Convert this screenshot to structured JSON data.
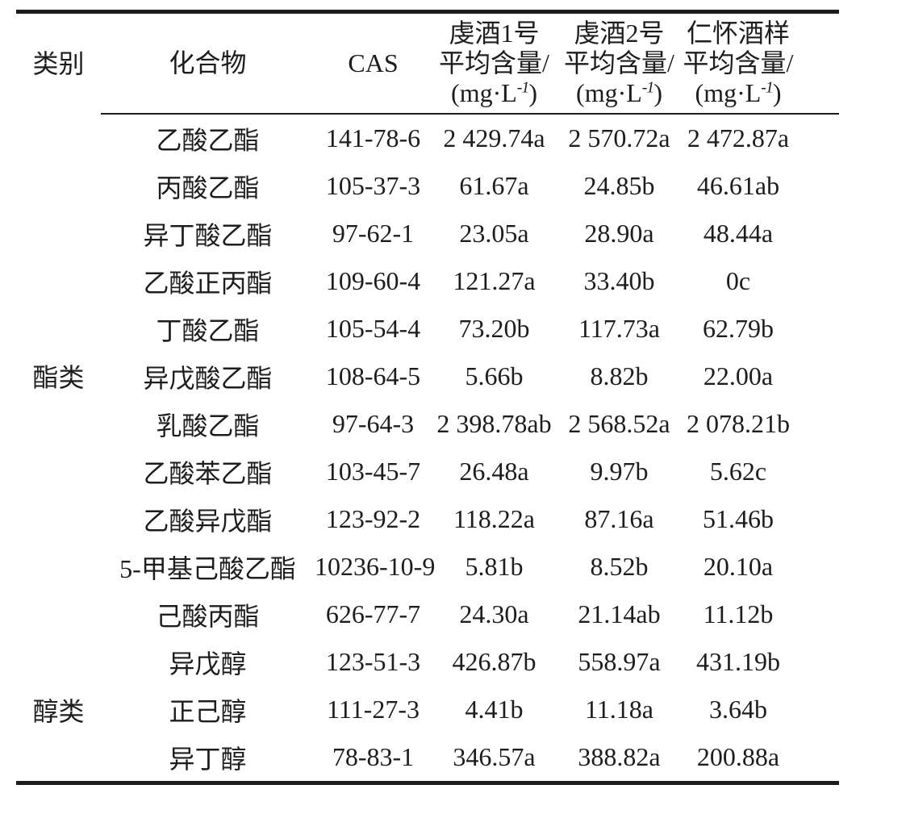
{
  "table": {
    "header": {
      "category": "类别",
      "compound": "化合物",
      "cas": "CAS",
      "measure_label": "平均含量/",
      "unit_main": "(mg·L",
      "unit_sup": "-1",
      "unit_close": ")",
      "samples": [
        {
          "name": "虔酒1号"
        },
        {
          "name": "虔酒2号"
        },
        {
          "name": "仁怀酒样"
        }
      ]
    },
    "groups": [
      {
        "category": "酯类",
        "rows": [
          {
            "compound": "乙酸乙酯",
            "cas": "141-78-6",
            "values": [
              "2 429.74a",
              "2 570.72a",
              "2 472.87a"
            ]
          },
          {
            "compound": "丙酸乙酯",
            "cas": "105-37-3",
            "values": [
              "61.67a",
              "24.85b",
              "46.61ab"
            ]
          },
          {
            "compound": "异丁酸乙酯",
            "cas": "97-62-1",
            "values": [
              "23.05a",
              "28.90a",
              "48.44a"
            ]
          },
          {
            "compound": "乙酸正丙酯",
            "cas": "109-60-4",
            "values": [
              "121.27a",
              "33.40b",
              "0c"
            ]
          },
          {
            "compound": "丁酸乙酯",
            "cas": "105-54-4",
            "values": [
              "73.20b",
              "117.73a",
              "62.79b"
            ]
          },
          {
            "compound": "异戊酸乙酯",
            "cas": "108-64-5",
            "values": [
              "5.66b",
              "8.82b",
              "22.00a"
            ]
          },
          {
            "compound": "乳酸乙酯",
            "cas": "97-64-3",
            "values": [
              "2 398.78ab",
              "2 568.52a",
              "2 078.21b"
            ]
          },
          {
            "compound": "乙酸苯乙酯",
            "cas": "103-45-7",
            "values": [
              "26.48a",
              "9.97b",
              "5.62c"
            ]
          },
          {
            "compound": "乙酸异戊酯",
            "cas": "123-92-2",
            "values": [
              "118.22a",
              "87.16a",
              "51.46b"
            ]
          },
          {
            "compound": "5-甲基己酸乙酯",
            "cas": "10236-10-9",
            "values": [
              "5.81b",
              "8.52b",
              "20.10a"
            ]
          },
          {
            "compound": "己酸丙酯",
            "cas": "626-77-7",
            "values": [
              "24.30a",
              "21.14ab",
              "11.12b"
            ]
          }
        ]
      },
      {
        "category": "醇类",
        "rows": [
          {
            "compound": "异戊醇",
            "cas": "123-51-3",
            "values": [
              "426.87b",
              "558.97a",
              "431.19b"
            ]
          },
          {
            "compound": "正己醇",
            "cas": "111-27-3",
            "values": [
              "4.41b",
              "11.18a",
              "3.64b"
            ]
          },
          {
            "compound": "异丁醇",
            "cas": "78-83-1",
            "values": [
              "346.57a",
              "388.82a",
              "200.88a"
            ]
          }
        ]
      }
    ]
  },
  "colors": {
    "text": "#1d1d1d",
    "rule": "#1c1c1c",
    "background": "#ffffff"
  }
}
